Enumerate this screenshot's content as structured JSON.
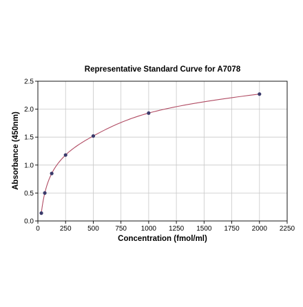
{
  "chart_data": {
    "type": "scatter",
    "title": "Representative Standard Curve for A7078",
    "xlabel": "Concentration (fmol/ml)",
    "ylabel": "Absorbance (450nm)",
    "xlim": [
      0,
      2250
    ],
    "ylim": [
      0,
      2.5
    ],
    "xticks": [
      0,
      250,
      500,
      750,
      1000,
      1250,
      1500,
      1750,
      2000,
      2250
    ],
    "yticks": [
      0.0,
      0.5,
      1.0,
      1.5,
      2.0,
      2.5
    ],
    "xtick_labels": [
      "0",
      "250",
      "500",
      "750",
      "1000",
      "1250",
      "1500",
      "1750",
      "2000",
      "2250"
    ],
    "ytick_labels": [
      "0.0",
      "0.5",
      "1.0",
      "1.5",
      "2.0",
      "2.5"
    ],
    "grid": true,
    "series": [
      {
        "x": [
          31.25,
          62.5,
          125,
          250,
          500,
          1000,
          2000
        ],
        "y": [
          0.14,
          0.5,
          0.85,
          1.18,
          1.52,
          1.93,
          2.27
        ]
      }
    ],
    "fit_curve": true,
    "colors": {
      "points": "#3b3b6b",
      "curve": "#b04a62",
      "grid": "#c8c8c8",
      "axis": "#000000"
    }
  }
}
